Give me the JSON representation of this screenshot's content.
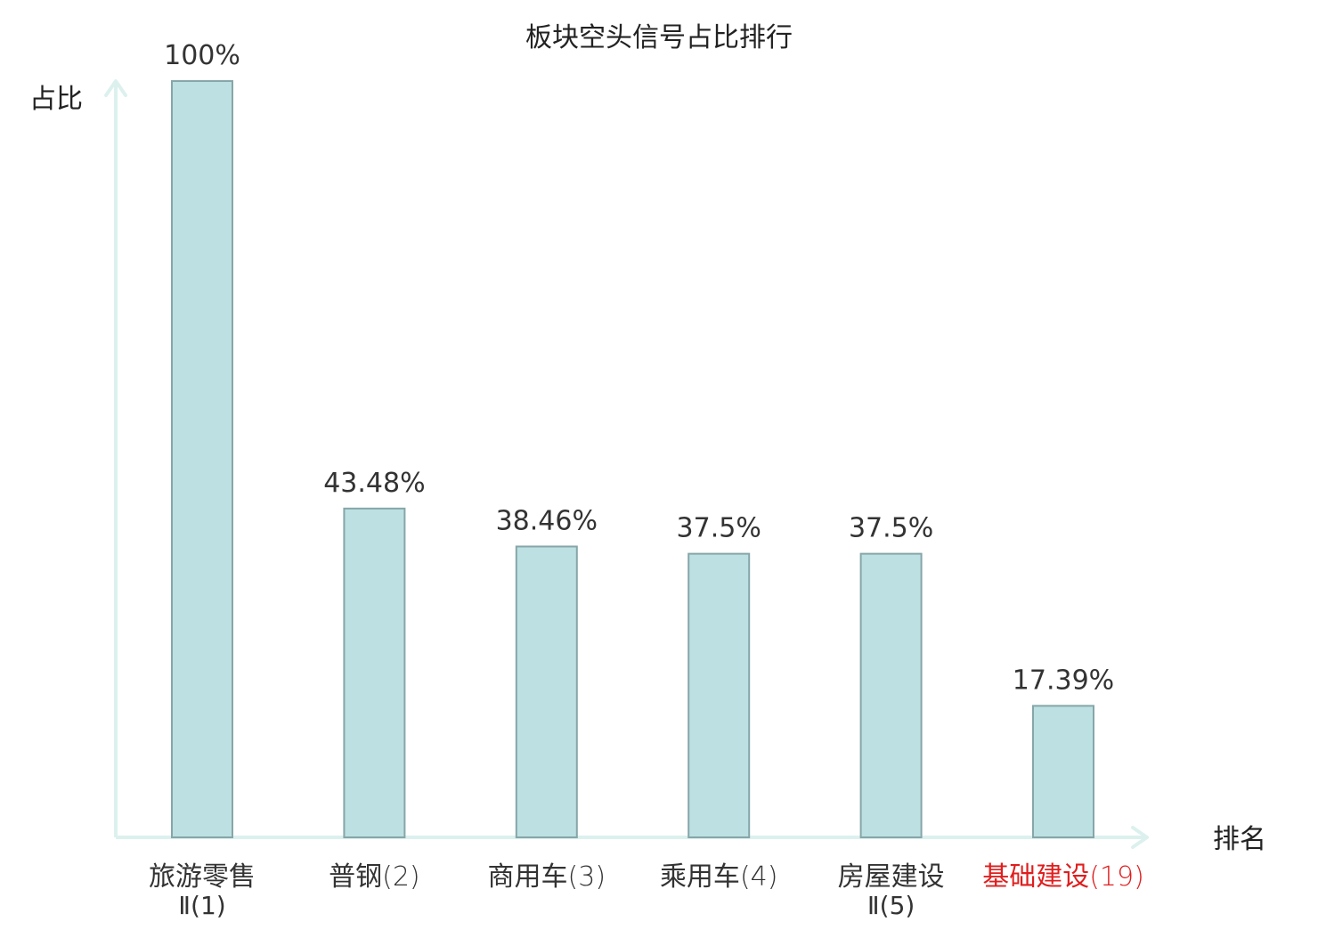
{
  "chart_data": {
    "type": "bar",
    "title": "板块空头信号占比排行",
    "ylabel": "占比",
    "xlabel": "排名",
    "categories": [
      {
        "line1": "旅游零售",
        "line2": "Ⅱ(1)",
        "rank": ""
      },
      {
        "line1": "普钢",
        "line2": "",
        "rank": "(2)"
      },
      {
        "line1": "商用车",
        "line2": "",
        "rank": "(3)"
      },
      {
        "line1": "乘用车",
        "line2": "",
        "rank": "(4)"
      },
      {
        "line1": "房屋建设",
        "line2": "Ⅱ(5)",
        "rank": ""
      },
      {
        "line1": "基础建设",
        "line2": "",
        "rank": "(19)",
        "highlight": true
      }
    ],
    "values": [
      100,
      43.48,
      38.46,
      37.5,
      37.5,
      17.39
    ],
    "value_labels": [
      "100%",
      "43.48%",
      "38.46%",
      "37.5%",
      "37.5%",
      "17.39%"
    ],
    "ylim": [
      0,
      100
    ],
    "grid": false,
    "colors": {
      "bar_fill": "#bde0e2",
      "bar_stroke": "#86a6a9",
      "axis": "#dcf1ee",
      "text": "#333333",
      "highlight": "#e01e1e"
    }
  }
}
